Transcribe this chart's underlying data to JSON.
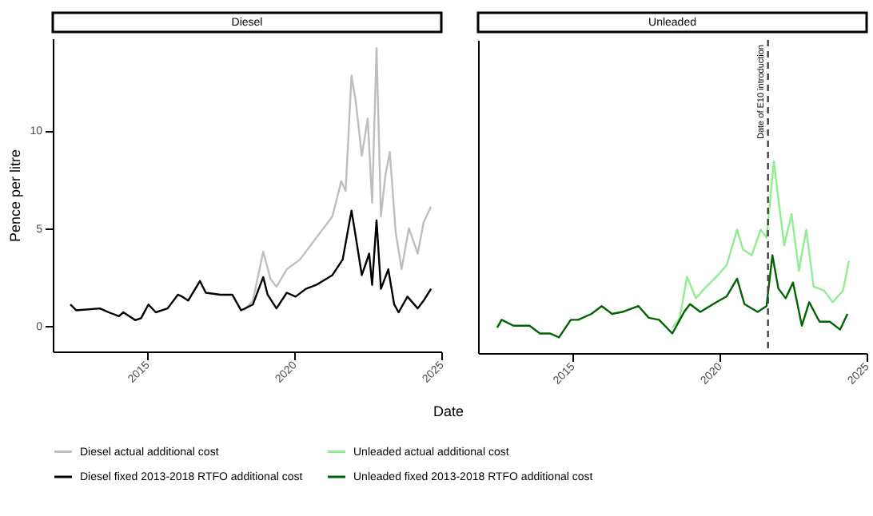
{
  "chart_data": [
    {
      "type": "line",
      "title": "Diesel",
      "ylabel": "Pence per litre",
      "xlabel": "Date",
      "legend": "bottom",
      "xlim": [
        2011.8,
        2025.0
      ],
      "xticks": [
        2015,
        2020,
        2025
      ],
      "ylim": [
        -1.3,
        14.7
      ],
      "yticks": [
        0,
        5,
        10
      ],
      "series": [
        {
          "name": "Diesel actual additional cost",
          "color": "#bebebe",
          "x": [
            2018.3,
            2018.6,
            2018.95,
            2019.2,
            2019.4,
            2019.75,
            2020.2,
            2020.75,
            2021.3,
            2021.6,
            2021.75,
            2021.95,
            2022.1,
            2022.3,
            2022.5,
            2022.65,
            2022.8,
            2022.95,
            2023.1,
            2023.25,
            2023.45,
            2023.65,
            2023.9,
            2024.2,
            2024.4,
            2024.65
          ],
          "values": [
            0.8,
            1.3,
            3.8,
            2.4,
            2.0,
            2.9,
            3.4,
            4.5,
            5.6,
            7.4,
            6.9,
            12.8,
            11.4,
            8.7,
            10.6,
            6.3,
            14.2,
            5.6,
            7.7,
            8.9,
            4.8,
            2.9,
            5.0,
            3.7,
            5.3,
            6.1
          ]
        },
        {
          "name": "Diesel fixed 2013-2018 RTFO additional cost",
          "color": "#000000",
          "x": [
            2012.4,
            2012.6,
            2013.4,
            2013.7,
            2014.05,
            2014.2,
            2014.6,
            2014.8,
            2015.05,
            2015.3,
            2015.7,
            2016.05,
            2016.2,
            2016.4,
            2016.8,
            2017.0,
            2017.5,
            2017.9,
            2018.2,
            2018.6,
            2018.95,
            2019.1,
            2019.4,
            2019.75,
            2020.05,
            2020.4,
            2020.75,
            2021.3,
            2021.65,
            2021.95,
            2022.1,
            2022.3,
            2022.55,
            2022.65,
            2022.8,
            2022.95,
            2023.2,
            2023.4,
            2023.55,
            2023.85,
            2024.2,
            2024.4,
            2024.65
          ],
          "values": [
            1.1,
            0.8,
            0.9,
            0.7,
            0.5,
            0.7,
            0.3,
            0.4,
            1.1,
            0.7,
            0.9,
            1.6,
            1.5,
            1.3,
            2.3,
            1.7,
            1.6,
            1.6,
            0.8,
            1.1,
            2.5,
            1.6,
            0.9,
            1.7,
            1.5,
            1.9,
            2.1,
            2.6,
            3.4,
            5.9,
            4.5,
            2.6,
            3.7,
            2.1,
            5.4,
            1.9,
            2.9,
            1.1,
            0.7,
            1.5,
            0.9,
            1.3,
            1.9
          ]
        }
      ]
    },
    {
      "type": "line",
      "title": "Unleaded",
      "legend": "bottom",
      "tick_labels": "x",
      "xlim": [
        2011.8,
        2025.0
      ],
      "xticks": [
        2015,
        2020,
        2025
      ],
      "ylim": [
        -1.3,
        14.7
      ],
      "yticks": [
        0,
        5,
        10
      ],
      "ref_lines": [
        {
          "axis": "x",
          "value": 2021.65,
          "label": "Date of E10 introduction",
          "color": "#404040",
          "line_style": "dashed"
        }
      ],
      "series": [
        {
          "name": "Unleaded actual additional cost",
          "color": "#90ee90",
          "x": [
            2018.4,
            2018.65,
            2018.9,
            2019.2,
            2019.5,
            2019.9,
            2020.25,
            2020.6,
            2020.8,
            2021.1,
            2021.4,
            2021.6,
            2021.85,
            2022.0,
            2022.2,
            2022.45,
            2022.7,
            2022.95,
            2023.2,
            2023.55,
            2023.85,
            2024.2,
            2024.4
          ],
          "values": [
            0.0,
            0.5,
            2.6,
            1.5,
            2.0,
            2.6,
            3.2,
            5.0,
            4.0,
            3.7,
            5.0,
            4.6,
            8.5,
            6.6,
            4.2,
            5.8,
            2.9,
            5.0,
            2.1,
            1.9,
            1.3,
            1.9,
            3.4
          ]
        },
        {
          "name": "Unleaded fixed 2013-2018 RTFO additional cost",
          "color": "#006400",
          "x": [
            2012.45,
            2012.6,
            2013.0,
            2013.55,
            2013.9,
            2014.25,
            2014.55,
            2014.95,
            2015.2,
            2015.65,
            2016.0,
            2016.35,
            2016.7,
            2017.25,
            2017.6,
            2017.95,
            2018.4,
            2018.8,
            2019.0,
            2019.35,
            2019.9,
            2020.25,
            2020.6,
            2020.85,
            2021.3,
            2021.6,
            2021.8,
            2022.0,
            2022.25,
            2022.5,
            2022.8,
            2023.05,
            2023.4,
            2023.75,
            2024.1,
            2024.35
          ],
          "values": [
            0.0,
            0.4,
            0.1,
            0.1,
            -0.3,
            -0.3,
            -0.5,
            0.4,
            0.4,
            0.7,
            1.1,
            0.7,
            0.8,
            1.1,
            0.5,
            0.4,
            -0.3,
            0.8,
            1.2,
            0.8,
            1.3,
            1.6,
            2.5,
            1.2,
            0.8,
            1.1,
            3.7,
            2.0,
            1.5,
            2.3,
            0.1,
            1.3,
            0.3,
            0.3,
            -0.1,
            0.7
          ]
        }
      ]
    }
  ]
}
